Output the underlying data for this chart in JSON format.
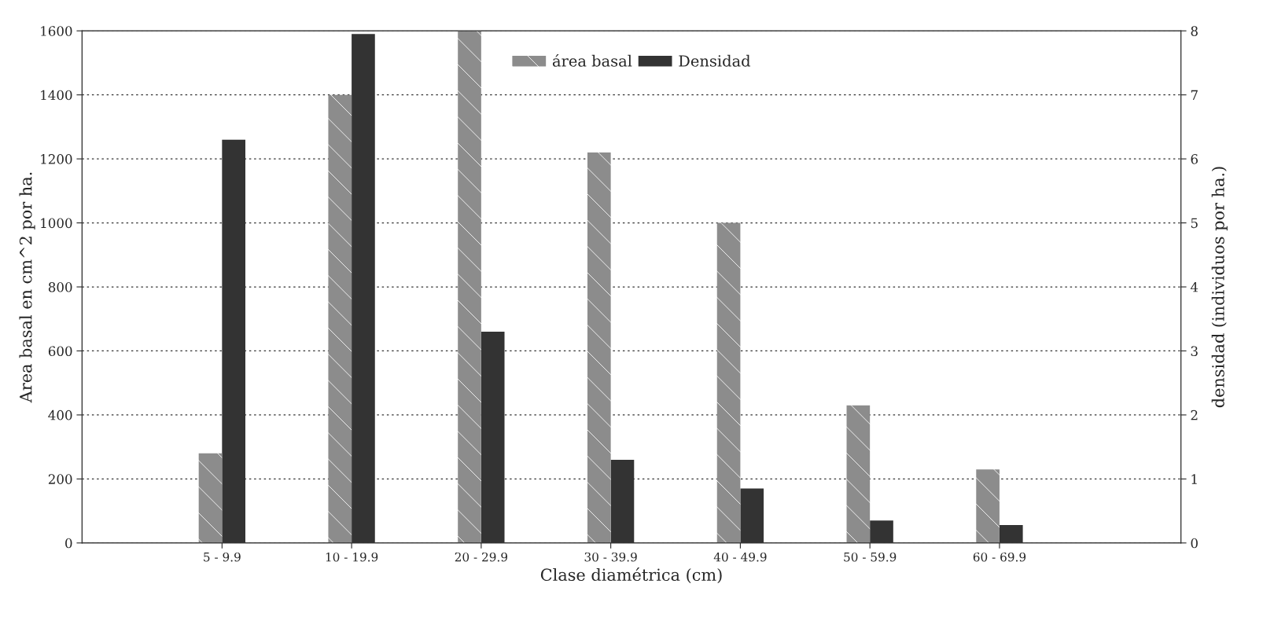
{
  "chart_data": {
    "type": "bar",
    "categories": [
      "5 - 9.9",
      "10 - 19.9",
      "20 - 29.9",
      "30 - 39.9",
      "40 - 49.9",
      "50 - 59.9",
      "60 - 69.9"
    ],
    "series": [
      {
        "name": "área basal",
        "color": "#8c8c8c",
        "values": [
          280,
          1400,
          1600,
          1220,
          1000,
          430,
          230
        ]
      },
      {
        "name": "Densidad",
        "color": "#333333",
        "axis": "y2",
        "values": [
          6.3,
          7.95,
          3.3,
          1.3,
          0.85,
          0.35,
          0.28
        ]
      }
    ],
    "xlabel": "Clase diamétrica (cm)",
    "ylabel": "Area basal en cm^2 por ha.",
    "y2label": "densidad (individuos por ha.)",
    "ylim": [
      0,
      1600
    ],
    "yticks": [
      0,
      200,
      400,
      600,
      800,
      1000,
      1200,
      1400,
      1600
    ],
    "y2lim": [
      0,
      8
    ],
    "y2ticks": [
      0,
      1,
      2,
      3,
      4,
      5,
      6,
      7,
      8
    ],
    "grid": "y",
    "legend": "top"
  }
}
